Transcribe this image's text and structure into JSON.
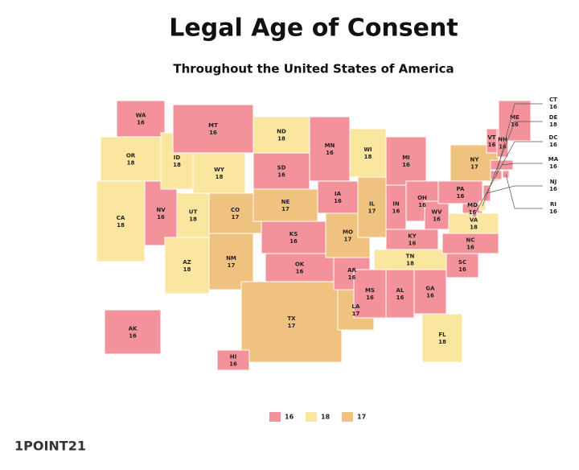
{
  "header": {
    "title": "Legal Age of Consent",
    "subtitle": "Throughout the United States of America"
  },
  "legend": [
    {
      "value": 16,
      "color": "#f4929b"
    },
    {
      "value": 18,
      "color": "#fbe6a0"
    },
    {
      "value": 17,
      "color": "#f0c27f"
    }
  ],
  "states": [
    {
      "abbr": "WA",
      "age": 16
    },
    {
      "abbr": "OR",
      "age": 18
    },
    {
      "abbr": "CA",
      "age": 18
    },
    {
      "abbr": "NV",
      "age": 16
    },
    {
      "abbr": "ID",
      "age": 18
    },
    {
      "abbr": "MT",
      "age": 16
    },
    {
      "abbr": "WY",
      "age": 18
    },
    {
      "abbr": "UT",
      "age": 18
    },
    {
      "abbr": "AZ",
      "age": 18
    },
    {
      "abbr": "CO",
      "age": 17
    },
    {
      "abbr": "NM",
      "age": 17
    },
    {
      "abbr": "ND",
      "age": 18
    },
    {
      "abbr": "SD",
      "age": 16
    },
    {
      "abbr": "NE",
      "age": 17
    },
    {
      "abbr": "KS",
      "age": 16
    },
    {
      "abbr": "OK",
      "age": 16
    },
    {
      "abbr": "TX",
      "age": 17
    },
    {
      "abbr": "MN",
      "age": 16
    },
    {
      "abbr": "IA",
      "age": 16
    },
    {
      "abbr": "MO",
      "age": 17
    },
    {
      "abbr": "AR",
      "age": 16
    },
    {
      "abbr": "LA",
      "age": 17
    },
    {
      "abbr": "WI",
      "age": 18
    },
    {
      "abbr": "IL",
      "age": 17
    },
    {
      "abbr": "MI",
      "age": 16
    },
    {
      "abbr": "IN",
      "age": 16
    },
    {
      "abbr": "OH",
      "age": 16
    },
    {
      "abbr": "KY",
      "age": 16
    },
    {
      "abbr": "TN",
      "age": 18
    },
    {
      "abbr": "MS",
      "age": 16
    },
    {
      "abbr": "AL",
      "age": 16
    },
    {
      "abbr": "GA",
      "age": 16
    },
    {
      "abbr": "FL",
      "age": 18
    },
    {
      "abbr": "SC",
      "age": 16
    },
    {
      "abbr": "NC",
      "age": 16
    },
    {
      "abbr": "WV",
      "age": 16
    },
    {
      "abbr": "VA",
      "age": 18
    },
    {
      "abbr": "PA",
      "age": 16
    },
    {
      "abbr": "MD",
      "age": 16
    },
    {
      "abbr": "NY",
      "age": 17
    },
    {
      "abbr": "VT",
      "age": 16
    },
    {
      "abbr": "NH",
      "age": 16
    },
    {
      "abbr": "ME",
      "age": 16
    },
    {
      "abbr": "AK",
      "age": 16
    },
    {
      "abbr": "HI",
      "age": 16
    },
    {
      "abbr": "CT",
      "age": 16
    },
    {
      "abbr": "DE",
      "age": 18
    },
    {
      "abbr": "DC",
      "age": 16
    },
    {
      "abbr": "MA",
      "age": 16
    },
    {
      "abbr": "NJ",
      "age": 16
    },
    {
      "abbr": "RI",
      "age": 16
    }
  ],
  "logo": "1POINT21"
}
